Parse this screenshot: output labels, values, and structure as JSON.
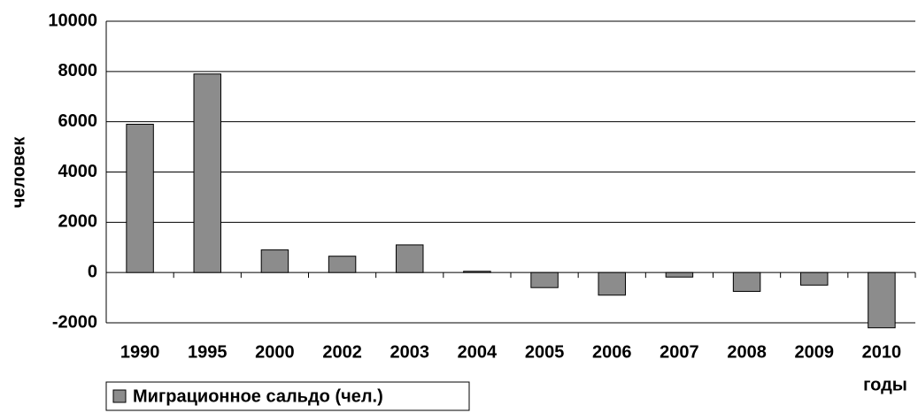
{
  "chart_data": {
    "type": "bar",
    "y_label": "человек",
    "x_label": "годы",
    "categories": [
      "1990",
      "1995",
      "2000",
      "2002",
      "2003",
      "2004",
      "2005",
      "2006",
      "2007",
      "2008",
      "2009",
      "2010"
    ],
    "series": [
      {
        "name": "Миграционное сальдо (чел.)",
        "color": "#8c8c8c",
        "values": [
          5900,
          7900,
          900,
          650,
          1100,
          50,
          -600,
          -900,
          -180,
          -750,
          -500,
          -2200
        ]
      }
    ],
    "ylim": [
      -2000,
      10000
    ],
    "yticks": [
      -2000,
      0,
      2000,
      4000,
      6000,
      8000,
      10000
    ],
    "grid": true
  }
}
